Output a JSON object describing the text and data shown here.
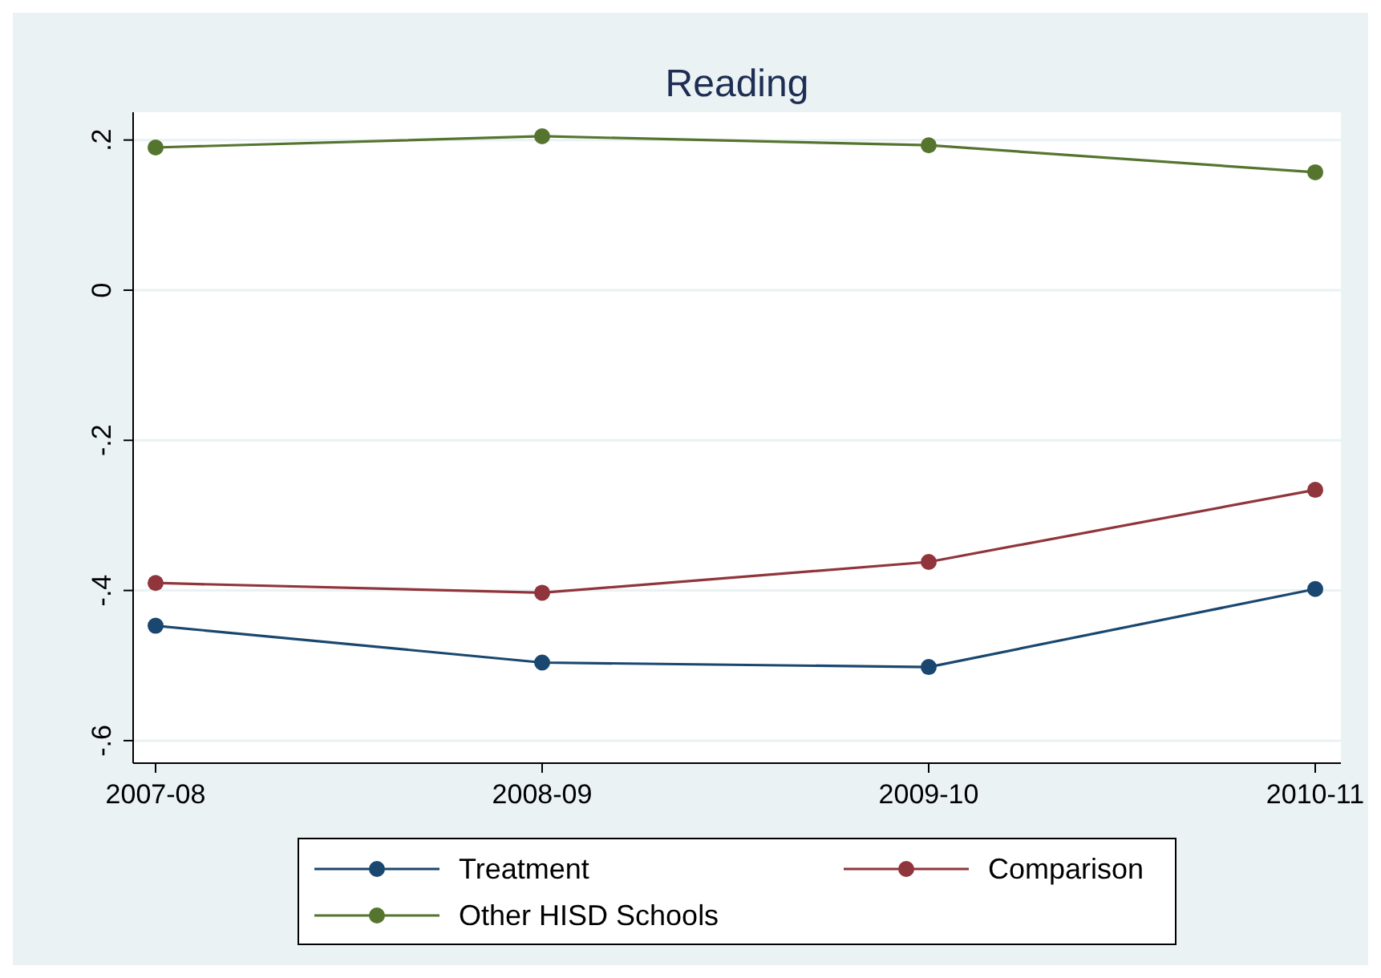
{
  "chart_data": {
    "type": "line",
    "title": "Reading",
    "categories": [
      "2007-08",
      "2008-09",
      "2009-10",
      "2010-11"
    ],
    "series": [
      {
        "name": "Treatment",
        "color": "#1a476f",
        "values": [
          -0.447,
          -0.496,
          -0.502,
          -0.398
        ]
      },
      {
        "name": "Comparison",
        "color": "#90353b",
        "values": [
          -0.39,
          -0.403,
          -0.362,
          -0.266
        ]
      },
      {
        "name": "Other HISD Schools",
        "color": "#55752f",
        "values": [
          0.19,
          0.205,
          0.193,
          0.157
        ]
      }
    ],
    "ylim": [
      -0.63,
      0.237
    ],
    "yticks": [
      {
        "value": -0.6,
        "label": "-.6"
      },
      {
        "value": -0.4,
        "label": "-.4"
      },
      {
        "value": -0.2,
        "label": "-.2"
      },
      0,
      {
        "value": 0.2,
        "label": ".2"
      }
    ],
    "grid": "y",
    "legend": "bottom",
    "marker": "circle",
    "line_style": "solid"
  }
}
